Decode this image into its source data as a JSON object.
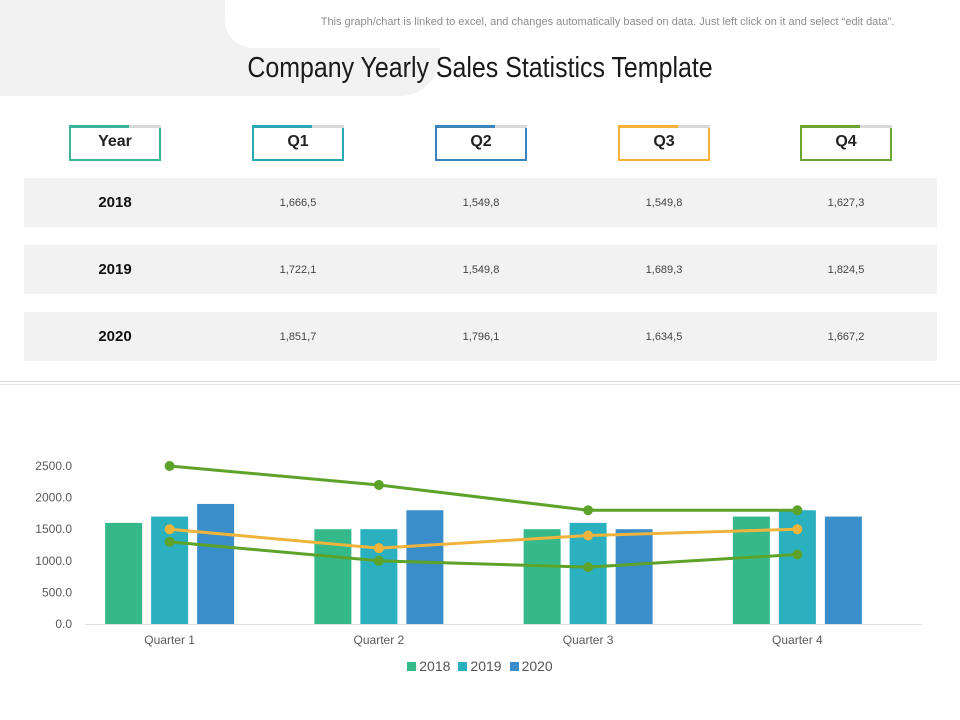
{
  "note": "This graph/chart is linked to excel,  and changes automatically based on data. Just left click on it and select “edit data”.",
  "title": "Company Yearly Sales Statistics Template",
  "table": {
    "headers": [
      {
        "label": "Year",
        "color": "#3bb59a"
      },
      {
        "label": "Q1",
        "color": "#2aa9b4"
      },
      {
        "label": "Q2",
        "color": "#3a86bc"
      },
      {
        "label": "Q3",
        "color": "#f2b23a"
      },
      {
        "label": "Q4",
        "color": "#6aa630"
      }
    ],
    "rows": [
      {
        "year": "2018",
        "values": [
          "1,666,5",
          "1,549,8",
          "1,549,8",
          "1,627,3"
        ]
      },
      {
        "year": "2019",
        "values": [
          "1,722,1",
          "1,549,8",
          "1,689,3",
          "1,824,5"
        ]
      },
      {
        "year": "2020",
        "values": [
          "1,851,7",
          "1,796,1",
          "1,634,5",
          "1,667,2"
        ]
      }
    ]
  },
  "chart_data": {
    "type": "bar",
    "categories": [
      "Quarter 1",
      "Quarter  2",
      "Quarter  3",
      "Quarter  4"
    ],
    "series": [
      {
        "name": "2018",
        "type": "bar",
        "color": "#35b98a",
        "values": [
          1600,
          1500,
          1500,
          1700
        ]
      },
      {
        "name": "2019",
        "type": "bar",
        "color": "#2bb0bf",
        "values": [
          1700,
          1500,
          1600,
          1800
        ]
      },
      {
        "name": "2020",
        "type": "bar",
        "color": "#3a8ec9",
        "values": [
          1900,
          1800,
          1500,
          1700
        ]
      }
    ],
    "lines": [
      {
        "color": "#5da32a",
        "values": [
          2500,
          2200,
          1800,
          1800
        ]
      },
      {
        "color": "#f0b43c",
        "values": [
          1500,
          1200,
          1400,
          1500
        ]
      },
      {
        "color": "#5da32a",
        "values": [
          1300,
          1000,
          900,
          1100
        ]
      }
    ],
    "ylim": [
      0,
      2500
    ],
    "yticks": [
      "0.0",
      "500.0",
      "1000.0",
      "1500.0",
      "2000.0",
      "2500.0"
    ],
    "legend": [
      "2018",
      "2019",
      "2020"
    ],
    "legend_position": "bottom"
  }
}
